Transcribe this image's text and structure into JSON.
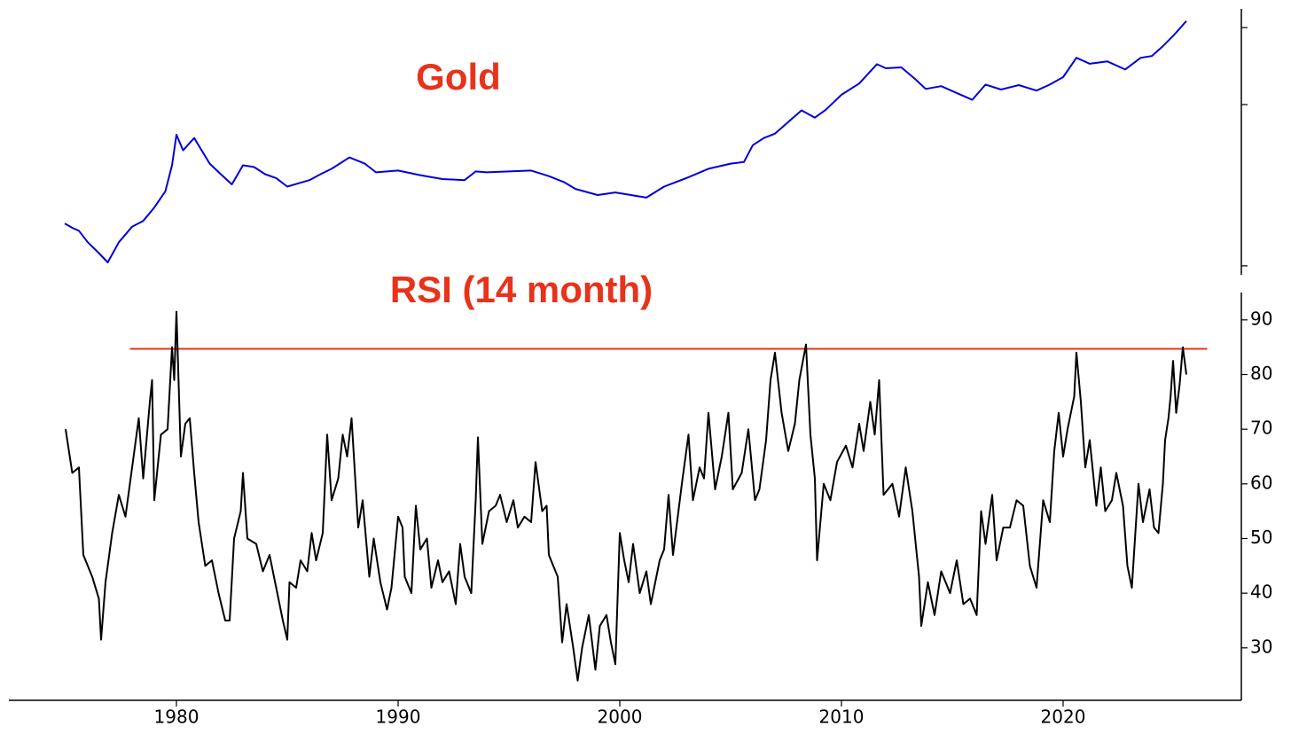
{
  "chart_data": [
    {
      "type": "line",
      "title": "Gold",
      "log_y": true,
      "x": [
        1974.96,
        1975.3,
        1975.6,
        1976.0,
        1976.5,
        1976.9,
        1977.4,
        1978.0,
        1978.5,
        1979.0,
        1979.5,
        1979.8,
        1980.0,
        1980.3,
        1980.8,
        1981.5,
        1982.0,
        1982.5,
        1983.0,
        1983.5,
        1984.0,
        1984.5,
        1985.0,
        1985.5,
        1986.0,
        1986.5,
        1987.0,
        1987.8,
        1988.5,
        1989.0,
        1990.0,
        1991.0,
        1992.0,
        1993.0,
        1993.5,
        1994.0,
        1995.0,
        1996.0,
        1996.8,
        1997.5,
        1998.0,
        1999.0,
        1999.8,
        2000.5,
        2001.2,
        2002.0,
        2003.0,
        2004.0,
        2005.0,
        2005.6,
        2006.0,
        2006.5,
        2007.0,
        2007.6,
        2008.2,
        2008.8,
        2009.3,
        2010.0,
        2010.8,
        2011.6,
        2012.0,
        2012.7,
        2013.3,
        2013.8,
        2014.5,
        2015.2,
        2015.9,
        2016.5,
        2017.2,
        2018.0,
        2018.8,
        2019.4,
        2020.0,
        2020.6,
        2021.2,
        2022.0,
        2022.8,
        2023.5,
        2024.0,
        2024.5,
        2025.0,
        2025.3,
        2025.56
      ],
      "series": [
        {
          "color": "#0000d8",
          "values": [
            183,
            172,
            165,
            140,
            120,
            105,
            140,
            175,
            190,
            230,
            290,
            420,
            650,
            520,
            620,
            430,
            370,
            320,
            420,
            410,
            370,
            350,
            310,
            325,
            340,
            370,
            400,
            470,
            430,
            380,
            390,
            365,
            345,
            340,
            385,
            380,
            385,
            390,
            360,
            330,
            300,
            275,
            285,
            275,
            265,
            310,
            350,
            400,
            430,
            440,
            560,
            620,
            660,
            780,
            920,
            830,
            930,
            1150,
            1350,
            1780,
            1680,
            1700,
            1450,
            1250,
            1300,
            1180,
            1070,
            1330,
            1240,
            1320,
            1220,
            1330,
            1480,
            1950,
            1790,
            1850,
            1650,
            1950,
            2000,
            2300,
            2700,
            3000,
            3300
          ]
        }
      ],
      "xlim": [
        1972.44,
        2028.04
      ],
      "ylim": [
        88,
        3920
      ],
      "yticks": [
        100,
        1000,
        3000
      ]
    },
    {
      "type": "line",
      "title": "RSI (14 month)",
      "x": [
        1975.0,
        1975.3,
        1975.6,
        1975.8,
        1976.2,
        1976.5,
        1976.6,
        1976.8,
        1977.1,
        1977.4,
        1977.7,
        1978.0,
        1978.3,
        1978.5,
        1978.8,
        1978.9,
        1979.0,
        1979.3,
        1979.6,
        1979.8,
        1979.9,
        1980.0,
        1980.2,
        1980.4,
        1980.6,
        1980.8,
        1981.0,
        1981.3,
        1981.6,
        1981.9,
        1982.2,
        1982.4,
        1982.6,
        1982.9,
        1983.0,
        1983.2,
        1983.6,
        1983.9,
        1984.2,
        1984.5,
        1984.8,
        1985.0,
        1985.1,
        1985.4,
        1985.6,
        1985.9,
        1986.1,
        1986.3,
        1986.6,
        1986.8,
        1987.0,
        1987.3,
        1987.5,
        1987.7,
        1987.9,
        1988.2,
        1988.4,
        1988.7,
        1988.9,
        1989.2,
        1989.5,
        1989.7,
        1990.0,
        1990.2,
        1990.3,
        1990.6,
        1990.8,
        1991.0,
        1991.3,
        1991.5,
        1991.8,
        1992.0,
        1992.3,
        1992.6,
        1992.8,
        1993.0,
        1993.3,
        1993.5,
        1993.6,
        1993.8,
        1994.1,
        1994.4,
        1994.6,
        1994.9,
        1995.2,
        1995.4,
        1995.7,
        1996.0,
        1996.2,
        1996.5,
        1996.7,
        1996.8,
        1997.2,
        1997.4,
        1997.6,
        1997.9,
        1998.1,
        1998.3,
        1998.6,
        1998.9,
        1999.1,
        1999.4,
        1999.6,
        1999.8,
        2000.0,
        2000.2,
        2000.4,
        2000.6,
        2000.9,
        2001.2,
        2001.4,
        2001.8,
        2002.0,
        2002.2,
        2002.4,
        2002.8,
        2003.1,
        2003.3,
        2003.6,
        2003.8,
        2004.0,
        2004.3,
        2004.6,
        2004.9,
        2005.1,
        2005.5,
        2005.8,
        2006.1,
        2006.3,
        2006.6,
        2006.8,
        2007.0,
        2007.3,
        2007.6,
        2007.9,
        2008.1,
        2008.4,
        2008.6,
        2008.8,
        2008.9,
        2009.2,
        2009.5,
        2009.8,
        2010.2,
        2010.5,
        2010.8,
        2011.0,
        2011.3,
        2011.5,
        2011.7,
        2011.9,
        2012.3,
        2012.6,
        2012.9,
        2013.2,
        2013.5,
        2013.6,
        2013.9,
        2014.2,
        2014.5,
        2014.9,
        2015.2,
        2015.5,
        2015.8,
        2016.1,
        2016.3,
        2016.5,
        2016.8,
        2017.0,
        2017.3,
        2017.6,
        2017.9,
        2018.2,
        2018.5,
        2018.8,
        2019.1,
        2019.4,
        2019.6,
        2019.8,
        2020.0,
        2020.2,
        2020.5,
        2020.6,
        2020.8,
        2021.0,
        2021.2,
        2021.5,
        2021.7,
        2021.9,
        2022.2,
        2022.4,
        2022.7,
        2022.9,
        2023.1,
        2023.4,
        2023.6,
        2023.9,
        2024.1,
        2024.3,
        2024.5,
        2024.6,
        2024.75,
        2024.85,
        2024.96,
        2025.1,
        2025.25,
        2025.4,
        2025.56
      ],
      "series": [
        {
          "color": "#000000",
          "values": [
            70,
            62,
            63,
            47,
            43,
            39,
            31.5,
            42,
            51,
            58,
            54,
            63,
            72,
            61,
            75,
            79,
            57,
            69,
            70,
            85,
            79,
            91.5,
            65,
            71,
            72,
            62,
            53,
            45,
            46,
            40,
            35,
            35,
            50,
            55,
            62,
            50,
            49,
            44,
            47,
            41,
            35,
            31.5,
            42,
            41,
            46,
            44,
            51,
            46,
            51,
            69,
            57,
            61,
            69,
            65,
            72,
            52,
            57,
            43,
            50,
            42,
            37,
            41,
            54,
            52,
            43,
            40,
            56,
            48,
            50,
            41,
            46,
            42,
            44,
            38,
            49,
            43,
            40,
            57,
            68.5,
            49,
            55,
            56,
            58,
            53,
            57,
            52,
            54,
            53,
            64,
            55,
            56,
            47,
            43,
            31,
            38,
            30,
            24,
            30,
            36,
            26,
            34,
            36,
            31,
            27,
            51,
            46,
            42,
            49,
            40,
            44,
            38,
            46,
            48,
            58,
            47,
            60,
            69,
            57,
            63,
            61,
            73,
            59,
            65,
            73,
            59,
            62,
            70,
            57,
            59,
            68,
            79,
            84,
            73,
            66,
            71,
            79,
            85.5,
            69,
            61,
            46,
            60,
            57,
            64,
            67,
            63,
            71,
            66,
            75,
            69,
            79,
            58,
            60,
            54,
            63,
            55,
            43,
            34,
            42,
            36,
            44,
            40,
            46,
            38,
            39,
            36,
            55,
            49,
            58,
            46,
            52,
            52,
            57,
            56,
            45,
            41,
            57,
            53,
            66,
            73,
            65,
            70,
            76,
            84,
            75,
            63,
            68,
            56,
            63,
            55,
            57,
            62,
            56,
            45,
            41,
            60,
            53,
            59,
            52,
            51,
            60,
            68,
            72,
            76,
            82.5,
            73,
            78,
            85,
            80
          ]
        }
      ],
      "hline": {
        "value": 84.7,
        "x": [
          1977.9,
          2026.5
        ],
        "color": "#e8321a"
      },
      "xlim": [
        1972.44,
        2028.04
      ],
      "ylim": [
        20.4,
        95
      ],
      "yticks": [
        30,
        40,
        50,
        60,
        70,
        80,
        90
      ],
      "xticks": [
        1980,
        1990,
        2000,
        2010,
        2020
      ]
    }
  ]
}
